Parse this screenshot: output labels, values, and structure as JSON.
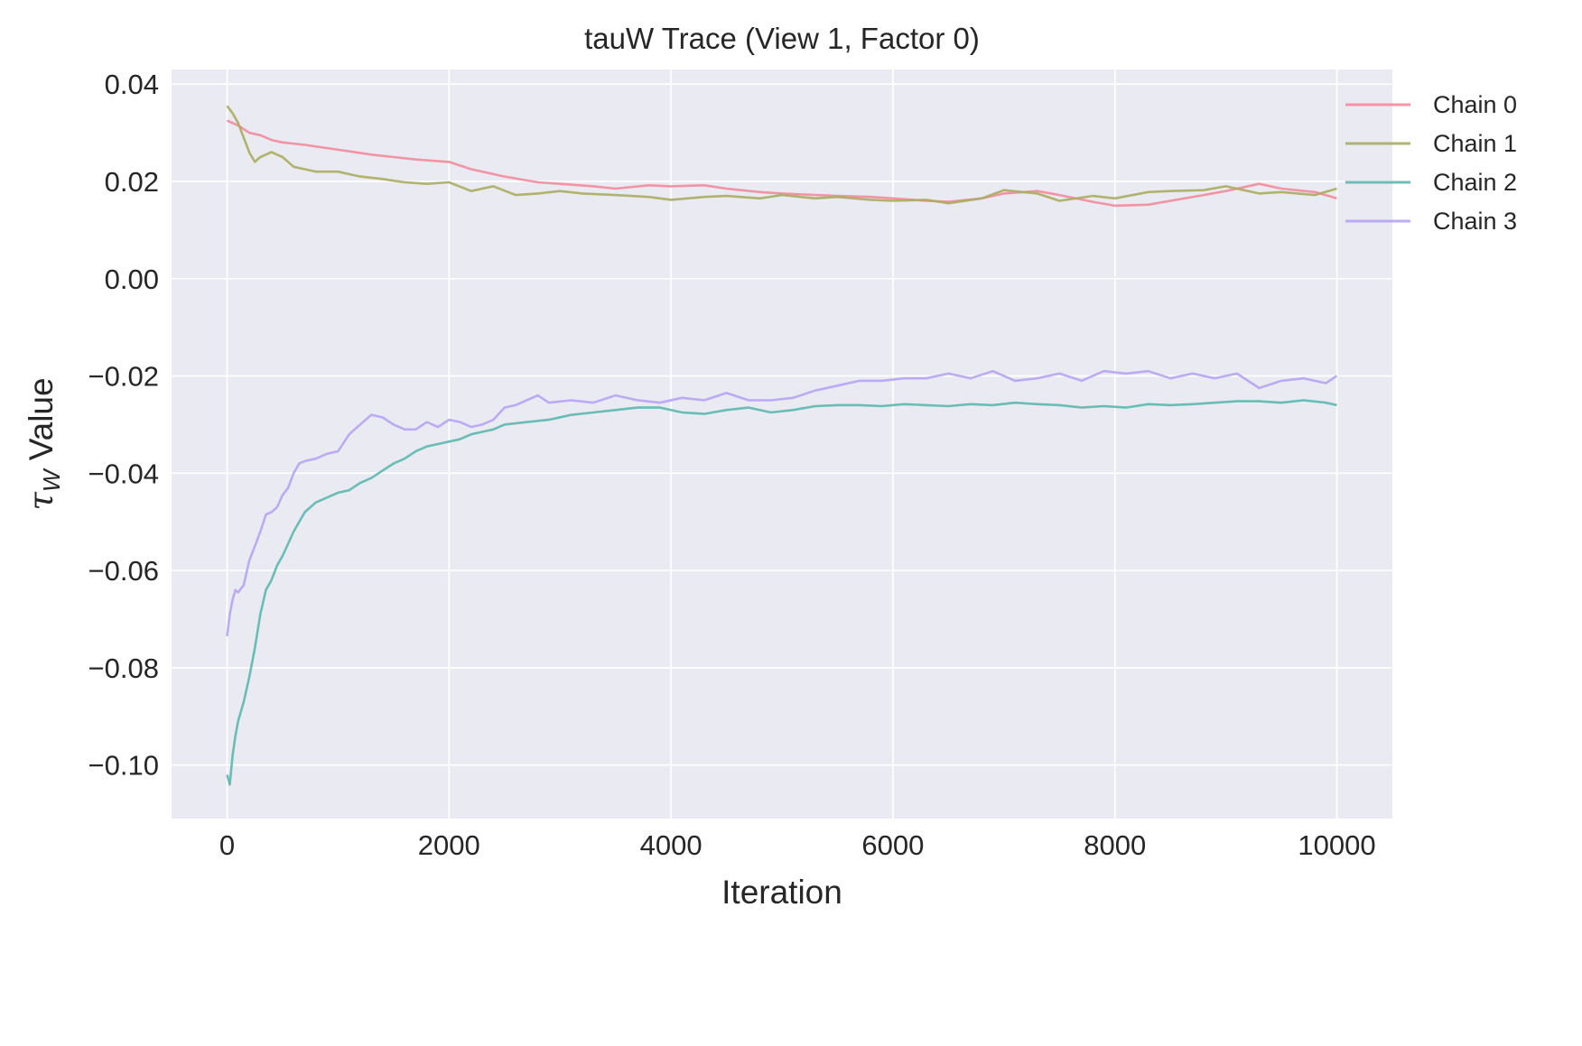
{
  "chart_data": {
    "type": "line",
    "title": "tauW Trace (View 1, Factor 0)",
    "xlabel": "Iteration",
    "ylabel_symbol": "τ",
    "ylabel_subscript": "W",
    "ylabel_text": " Value",
    "xlim": [
      -500,
      10500
    ],
    "ylim": [
      -0.111,
      0.043
    ],
    "xticks": [
      0,
      2000,
      4000,
      6000,
      8000,
      10000
    ],
    "xtick_labels": [
      "0",
      "2000",
      "4000",
      "6000",
      "8000",
      "10000"
    ],
    "yticks": [
      0.04,
      0.02,
      0.0,
      -0.02,
      -0.04,
      -0.06,
      -0.08,
      -0.1
    ],
    "ytick_labels": [
      "0.04",
      "0.02",
      "0.00",
      "−0.02",
      "−0.04",
      "−0.06",
      "−0.08",
      "−0.10"
    ],
    "grid": true,
    "legend_position": "top-right",
    "series": [
      {
        "name": "Chain 0",
        "color": "#f28b9c",
        "x": [
          0,
          100,
          200,
          300,
          400,
          500,
          700,
          1000,
          1300,
          1500,
          1700,
          2000,
          2200,
          2500,
          2800,
          3000,
          3300,
          3500,
          3800,
          4000,
          4300,
          4500,
          4800,
          5000,
          5300,
          5500,
          5800,
          6000,
          6300,
          6500,
          6800,
          7000,
          7300,
          7500,
          7800,
          8000,
          8300,
          8500,
          8800,
          9000,
          9300,
          9500,
          9800,
          10000
        ],
        "y": [
          0.0325,
          0.0315,
          0.03,
          0.0295,
          0.0285,
          0.028,
          0.0275,
          0.0265,
          0.0255,
          0.025,
          0.0245,
          0.024,
          0.0225,
          0.021,
          0.0198,
          0.0195,
          0.019,
          0.0185,
          0.0192,
          0.019,
          0.0192,
          0.0185,
          0.0178,
          0.0175,
          0.0172,
          0.017,
          0.0168,
          0.0165,
          0.016,
          0.0158,
          0.0165,
          0.0175,
          0.018,
          0.0172,
          0.0158,
          0.015,
          0.0152,
          0.016,
          0.0172,
          0.018,
          0.0195,
          0.0185,
          0.0178,
          0.0165
        ]
      },
      {
        "name": "Chain 1",
        "color": "#a8ad5f",
        "x": [
          0,
          50,
          100,
          150,
          200,
          250,
          300,
          400,
          500,
          600,
          700,
          800,
          1000,
          1200,
          1400,
          1600,
          1800,
          2000,
          2200,
          2400,
          2600,
          2800,
          3000,
          3200,
          3500,
          3800,
          4000,
          4300,
          4500,
          4800,
          5000,
          5300,
          5500,
          5800,
          6000,
          6300,
          6500,
          6800,
          7000,
          7300,
          7500,
          7800,
          8000,
          8300,
          8500,
          8800,
          9000,
          9300,
          9500,
          9800,
          10000
        ],
        "y": [
          0.0355,
          0.034,
          0.032,
          0.029,
          0.026,
          0.024,
          0.025,
          0.026,
          0.025,
          0.023,
          0.0225,
          0.022,
          0.022,
          0.021,
          0.0205,
          0.0198,
          0.0195,
          0.0198,
          0.018,
          0.019,
          0.0172,
          0.0175,
          0.018,
          0.0175,
          0.0172,
          0.0168,
          0.0162,
          0.0168,
          0.017,
          0.0165,
          0.0172,
          0.0165,
          0.0168,
          0.0162,
          0.016,
          0.0162,
          0.0155,
          0.0165,
          0.0182,
          0.0175,
          0.016,
          0.017,
          0.0165,
          0.0178,
          0.018,
          0.0182,
          0.019,
          0.0175,
          0.0178,
          0.0172,
          0.0185
        ]
      },
      {
        "name": "Chain 2",
        "color": "#5cb8ae",
        "x": [
          0,
          25,
          50,
          75,
          100,
          150,
          200,
          250,
          300,
          350,
          400,
          450,
          500,
          600,
          700,
          800,
          900,
          1000,
          1100,
          1200,
          1300,
          1400,
          1500,
          1600,
          1700,
          1800,
          1900,
          2000,
          2100,
          2200,
          2300,
          2400,
          2500,
          2700,
          2900,
          3100,
          3300,
          3500,
          3700,
          3900,
          4100,
          4300,
          4500,
          4700,
          4900,
          5100,
          5300,
          5500,
          5700,
          5900,
          6100,
          6300,
          6500,
          6700,
          6900,
          7100,
          7300,
          7500,
          7700,
          7900,
          8100,
          8300,
          8500,
          8700,
          8900,
          9100,
          9300,
          9500,
          9700,
          9900,
          10000
        ],
        "y": [
          -0.102,
          -0.104,
          -0.098,
          -0.094,
          -0.091,
          -0.087,
          -0.082,
          -0.076,
          -0.069,
          -0.064,
          -0.062,
          -0.059,
          -0.057,
          -0.052,
          -0.048,
          -0.046,
          -0.045,
          -0.044,
          -0.0435,
          -0.042,
          -0.041,
          -0.0395,
          -0.038,
          -0.037,
          -0.0355,
          -0.0345,
          -0.034,
          -0.0335,
          -0.033,
          -0.032,
          -0.0315,
          -0.031,
          -0.03,
          -0.0295,
          -0.029,
          -0.028,
          -0.0275,
          -0.027,
          -0.0265,
          -0.0265,
          -0.0275,
          -0.0278,
          -0.027,
          -0.0265,
          -0.0275,
          -0.027,
          -0.0262,
          -0.026,
          -0.026,
          -0.0262,
          -0.0258,
          -0.026,
          -0.0262,
          -0.0258,
          -0.026,
          -0.0255,
          -0.0258,
          -0.026,
          -0.0265,
          -0.0262,
          -0.0265,
          -0.0258,
          -0.026,
          -0.0258,
          -0.0255,
          -0.0252,
          -0.0252,
          -0.0255,
          -0.025,
          -0.0255,
          -0.026
        ]
      },
      {
        "name": "Chain 3",
        "color": "#b6a4f2",
        "x": [
          0,
          25,
          50,
          75,
          100,
          150,
          200,
          250,
          300,
          350,
          400,
          450,
          500,
          550,
          600,
          650,
          700,
          800,
          900,
          1000,
          1100,
          1200,
          1300,
          1400,
          1500,
          1600,
          1700,
          1800,
          1900,
          2000,
          2100,
          2200,
          2300,
          2400,
          2500,
          2600,
          2700,
          2800,
          2900,
          3100,
          3300,
          3500,
          3700,
          3900,
          4100,
          4300,
          4500,
          4700,
          4900,
          5100,
          5300,
          5500,
          5700,
          5900,
          6100,
          6300,
          6500,
          6700,
          6900,
          7100,
          7300,
          7500,
          7700,
          7900,
          8100,
          8300,
          8500,
          8700,
          8900,
          9100,
          9300,
          9500,
          9700,
          9900,
          10000
        ],
        "y": [
          -0.0735,
          -0.069,
          -0.066,
          -0.064,
          -0.0645,
          -0.063,
          -0.058,
          -0.055,
          -0.052,
          -0.0485,
          -0.048,
          -0.047,
          -0.0445,
          -0.043,
          -0.04,
          -0.038,
          -0.0375,
          -0.037,
          -0.036,
          -0.0355,
          -0.032,
          -0.03,
          -0.028,
          -0.0285,
          -0.03,
          -0.031,
          -0.031,
          -0.0295,
          -0.0305,
          -0.029,
          -0.0295,
          -0.0305,
          -0.03,
          -0.029,
          -0.0265,
          -0.026,
          -0.025,
          -0.024,
          -0.0255,
          -0.025,
          -0.0255,
          -0.024,
          -0.025,
          -0.0255,
          -0.0245,
          -0.025,
          -0.0235,
          -0.025,
          -0.025,
          -0.0245,
          -0.023,
          -0.022,
          -0.021,
          -0.021,
          -0.0205,
          -0.0205,
          -0.0195,
          -0.0205,
          -0.019,
          -0.021,
          -0.0205,
          -0.0195,
          -0.021,
          -0.019,
          -0.0195,
          -0.019,
          -0.0205,
          -0.0195,
          -0.0205,
          -0.0195,
          -0.0225,
          -0.021,
          -0.0205,
          -0.0215,
          -0.02
        ]
      }
    ]
  }
}
